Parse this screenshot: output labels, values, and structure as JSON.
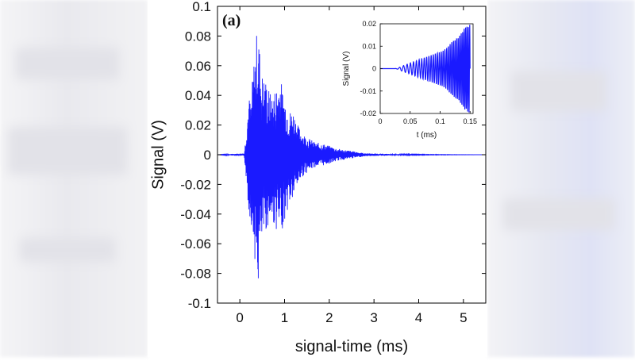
{
  "panel_label": "(a)",
  "colors": {
    "line": "#1a1aff",
    "axis": "#000000",
    "background": "#ffffff"
  },
  "chart_data": [
    {
      "type": "line",
      "role": "main",
      "title": "",
      "xlabel": "signal-time (ms)",
      "ylabel": "Signal (V)",
      "xlim": [
        -0.5,
        5.5
      ],
      "ylim": [
        -0.1,
        0.1
      ],
      "xticks": [
        0,
        1,
        2,
        3,
        4,
        5
      ],
      "xtick_labels": [
        "0",
        "1",
        "2",
        "3",
        "4",
        "5"
      ],
      "yticks": [
        -0.1,
        -0.08,
        -0.06,
        -0.04,
        -0.02,
        0,
        0.02,
        0.04,
        0.06,
        0.08,
        0.1
      ],
      "ytick_labels": [
        "-0.1",
        "-0.08",
        "-0.06",
        "-0.04",
        "-0.02",
        "0",
        "0.02",
        "0.04",
        "0.06",
        "0.08",
        "0.1"
      ],
      "grid": false,
      "series": [
        {
          "color": "#1a1aff",
          "x": [
            -0.5,
            0.1,
            0.15,
            0.2,
            0.25,
            0.3,
            0.35,
            0.4,
            0.45,
            0.5,
            0.6,
            0.7,
            0.8,
            0.9,
            0.95,
            1.0,
            1.1,
            1.2,
            1.3,
            1.4,
            1.5,
            1.6,
            1.7,
            1.8,
            2.0,
            2.2,
            2.4,
            2.6,
            2.8,
            3.0,
            3.5,
            4.0,
            5.5
          ],
          "y_max": [
            0,
            0.001,
            0.02,
            0.04,
            0.035,
            0.06,
            0.075,
            0.09,
            0.07,
            0.055,
            0.05,
            0.04,
            0.045,
            0.055,
            0.045,
            0.04,
            0.03,
            0.03,
            0.02,
            0.015,
            0.012,
            0.01,
            0.008,
            0.008,
            0.006,
            0.004,
            0.003,
            0.002,
            0.001,
            0.0008,
            0.0004,
            0.0002,
            0
          ],
          "y_min": [
            0,
            -0.001,
            -0.02,
            -0.04,
            -0.045,
            -0.06,
            -0.075,
            -0.095,
            -0.07,
            -0.06,
            -0.05,
            -0.045,
            -0.05,
            -0.055,
            -0.05,
            -0.045,
            -0.035,
            -0.03,
            -0.02,
            -0.015,
            -0.012,
            -0.01,
            -0.008,
            -0.008,
            -0.006,
            -0.004,
            -0.003,
            -0.002,
            -0.001,
            -0.0008,
            -0.0004,
            -0.0002,
            0
          ]
        }
      ]
    },
    {
      "type": "line",
      "role": "inset",
      "title": "",
      "xlabel": "t (ms)",
      "ylabel": "Signal (V)",
      "xlim": [
        0,
        0.155
      ],
      "ylim": [
        -0.02,
        0.02
      ],
      "xticks": [
        0,
        0.05,
        0.1,
        0.15
      ],
      "xtick_labels": [
        "0",
        "0.05",
        "0.1",
        "0.15"
      ],
      "yticks": [
        -0.02,
        -0.01,
        0,
        0.01,
        0.02
      ],
      "ytick_labels": [
        "-0.02",
        "-0.01",
        "0",
        "0.01",
        "0.02"
      ],
      "grid": false,
      "series": [
        {
          "color": "#1a1aff",
          "x": [
            0,
            0.025,
            0.03,
            0.035,
            0.04,
            0.045,
            0.05,
            0.055,
            0.06,
            0.065,
            0.07,
            0.075,
            0.08,
            0.085,
            0.09,
            0.095,
            0.1,
            0.105,
            0.11,
            0.115,
            0.12,
            0.125,
            0.13,
            0.135,
            0.14,
            0.145,
            0.15
          ],
          "amplitude": [
            0,
            0,
            0.0003,
            0.001,
            0.0015,
            0.002,
            0.0025,
            0.003,
            0.0035,
            0.004,
            0.0045,
            0.005,
            0.0055,
            0.006,
            0.0065,
            0.007,
            0.0075,
            0.008,
            0.009,
            0.0105,
            0.012,
            0.013,
            0.014,
            0.016,
            0.018,
            0.019,
            0.02
          ]
        }
      ]
    }
  ]
}
